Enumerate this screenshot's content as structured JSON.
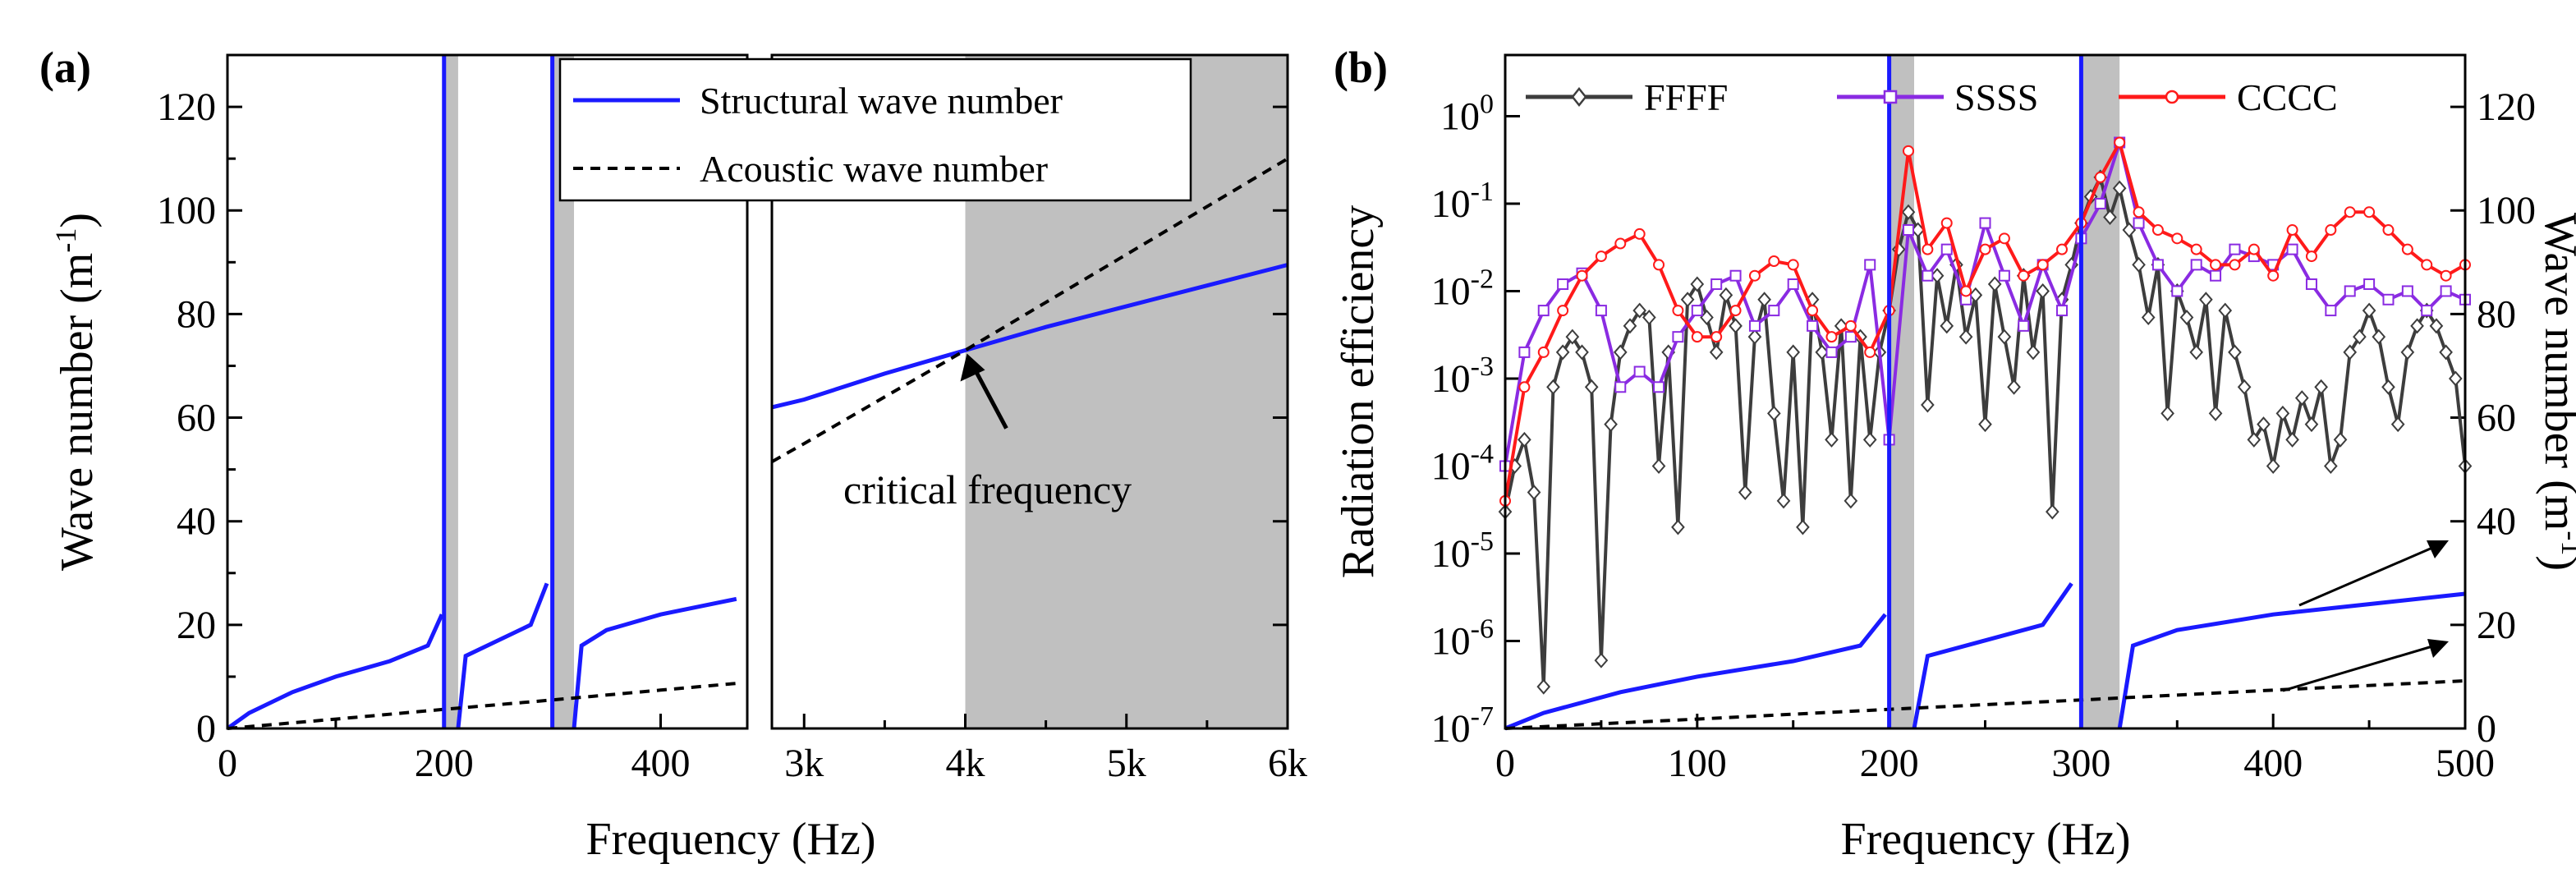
{
  "chart_data": [
    {
      "panel": "(a)",
      "type": "line",
      "xlabel": "Frequency (Hz)",
      "ylabel_prefix": "Wave number (m",
      "ylabel_sup": "-1",
      "ylabel_suffix": ")",
      "ylim": [
        0,
        130
      ],
      "yticks": [
        0,
        20,
        40,
        60,
        80,
        100,
        120
      ],
      "broken_axis": true,
      "segment1": {
        "xlim": [
          0,
          480
        ],
        "xticks": [
          0,
          200,
          400
        ],
        "xtick_labels": [
          "0",
          "200",
          "400"
        ]
      },
      "segment2": {
        "xlim": [
          2800,
          6000
        ],
        "xticks": [
          3000,
          4000,
          5000,
          6000
        ],
        "xtick_labels": [
          "3k",
          "4k",
          "5k",
          "6k"
        ]
      },
      "shaded_bands_hz": [
        [
          200,
          213
        ],
        [
          300,
          320
        ],
        [
          4000,
          6000
        ]
      ],
      "legend": [
        "Structural wave number",
        "Acoustic wave number"
      ],
      "legend_position": "top-right",
      "annotation": "critical frequency",
      "critical_point": {
        "x": 4000,
        "y": 73
      },
      "series": [
        {
          "name": "Structural wave number",
          "style": "solid",
          "color": "#1a1aff",
          "x": [
            0,
            20,
            60,
            100,
            150,
            185,
            198,
            213,
            220,
            250,
            280,
            295,
            320,
            327,
            350,
            400,
            470,
            2800,
            3000,
            3500,
            4000,
            4500,
            5000,
            5500,
            6000
          ],
          "y": [
            0,
            3,
            7,
            10,
            13,
            16,
            22,
            0,
            14,
            17,
            20,
            28,
            0,
            16,
            19,
            22,
            25,
            62,
            63.5,
            68.5,
            73,
            77.5,
            81.5,
            85.5,
            89.5
          ]
        },
        {
          "name": "Acoustic wave number",
          "style": "dashed",
          "color": "#000000",
          "x": [
            0,
            100,
            200,
            300,
            400,
            470,
            2800,
            3000,
            4000,
            5000,
            6000
          ],
          "y": [
            0,
            1.8,
            3.7,
            5.5,
            7.4,
            8.7,
            51.5,
            55,
            73,
            91.5,
            110
          ]
        }
      ]
    },
    {
      "panel": "(b)",
      "type": "line",
      "xlabel": "Frequency (Hz)",
      "ylabel": "Radiation efficiency",
      "ylabel_right_prefix": "Wave number (m",
      "ylabel_right_sup": "-1",
      "ylabel_right_suffix": ")",
      "xlim": [
        0,
        500
      ],
      "xticks": [
        0,
        100,
        200,
        300,
        400,
        500
      ],
      "ylim_log": [
        1e-07,
        5
      ],
      "ytick_exponents": [
        -7,
        -6,
        -5,
        -4,
        -3,
        -2,
        -1,
        0
      ],
      "ytick_base": "10",
      "ylim_right": [
        0,
        130
      ],
      "yticks_right": [
        0,
        20,
        40,
        60,
        80,
        100,
        120
      ],
      "shaded_bands_hz": [
        [
          200,
          213
        ],
        [
          300,
          320
        ]
      ],
      "legend": [
        "FFFF",
        "SSSS",
        "CCCC"
      ],
      "legend_position": "top",
      "series": [
        {
          "name": "FFFF",
          "color": "#3d3d3d",
          "marker": "diamond",
          "x": [
            0,
            5,
            10,
            15,
            20,
            25,
            30,
            35,
            40,
            45,
            50,
            55,
            60,
            65,
            70,
            75,
            80,
            85,
            90,
            95,
            100,
            105,
            110,
            115,
            120,
            125,
            130,
            135,
            140,
            145,
            150,
            155,
            160,
            165,
            170,
            175,
            180,
            185,
            190,
            195,
            200,
            205,
            210,
            215,
            220,
            225,
            230,
            235,
            240,
            245,
            250,
            255,
            260,
            265,
            270,
            275,
            280,
            285,
            290,
            295,
            300,
            305,
            310,
            315,
            320,
            325,
            330,
            335,
            340,
            345,
            350,
            355,
            360,
            365,
            370,
            375,
            380,
            385,
            390,
            395,
            400,
            405,
            410,
            415,
            420,
            425,
            430,
            435,
            440,
            445,
            450,
            455,
            460,
            465,
            470,
            475,
            480,
            485,
            490,
            495,
            500
          ],
          "y": [
            3e-05,
            0.0001,
            0.0002,
            5e-05,
            3e-07,
            0.0008,
            0.002,
            0.003,
            0.002,
            0.0008,
            6e-07,
            0.0003,
            0.002,
            0.004,
            0.006,
            0.005,
            0.0001,
            0.002,
            2e-05,
            0.008,
            0.012,
            0.005,
            0.002,
            0.009,
            0.004,
            5e-05,
            0.003,
            0.008,
            0.0004,
            4e-05,
            0.002,
            2e-05,
            0.008,
            0.002,
            0.0002,
            0.004,
            4e-05,
            0.003,
            0.0002,
            0.002,
            0.006,
            0.03,
            0.08,
            0.05,
            0.0005,
            0.015,
            0.004,
            0.02,
            0.003,
            0.009,
            0.0003,
            0.012,
            0.003,
            0.0008,
            0.015,
            0.002,
            0.01,
            3e-05,
            0.008,
            0.02,
            0.06,
            0.12,
            0.2,
            0.07,
            0.15,
            0.05,
            0.02,
            0.005,
            0.02,
            0.0004,
            0.01,
            0.005,
            0.002,
            0.008,
            0.0004,
            0.006,
            0.002,
            0.0008,
            0.0002,
            0.0003,
            0.0001,
            0.0004,
            0.0002,
            0.0006,
            0.0003,
            0.0008,
            0.0001,
            0.0002,
            0.002,
            0.003,
            0.006,
            0.003,
            0.0008,
            0.0003,
            0.002,
            0.004,
            0.006,
            0.004,
            0.002,
            0.001,
            0.0001
          ]
        },
        {
          "name": "SSSS",
          "color": "#8a2be2",
          "marker": "square",
          "x": [
            0,
            10,
            20,
            30,
            40,
            50,
            60,
            70,
            80,
            90,
            100,
            110,
            120,
            130,
            140,
            150,
            160,
            170,
            180,
            190,
            200,
            210,
            220,
            230,
            240,
            250,
            260,
            270,
            280,
            290,
            300,
            310,
            320,
            330,
            340,
            350,
            360,
            370,
            380,
            390,
            400,
            410,
            420,
            430,
            440,
            450,
            460,
            470,
            480,
            490,
            500
          ],
          "y": [
            0.0001,
            0.002,
            0.006,
            0.012,
            0.016,
            0.006,
            0.0008,
            0.0012,
            0.0008,
            0.003,
            0.006,
            0.012,
            0.015,
            0.004,
            0.006,
            0.012,
            0.004,
            0.002,
            0.003,
            0.02,
            0.0002,
            0.05,
            0.015,
            0.03,
            0.008,
            0.06,
            0.015,
            0.004,
            0.02,
            0.006,
            0.04,
            0.1,
            0.5,
            0.06,
            0.02,
            0.01,
            0.02,
            0.015,
            0.03,
            0.025,
            0.02,
            0.03,
            0.012,
            0.006,
            0.01,
            0.012,
            0.008,
            0.01,
            0.006,
            0.01,
            0.008
          ]
        },
        {
          "name": "CCCC",
          "color": "#ff1a1a",
          "marker": "circle",
          "x": [
            0,
            10,
            20,
            30,
            40,
            50,
            60,
            70,
            80,
            90,
            100,
            110,
            120,
            130,
            140,
            150,
            160,
            170,
            180,
            190,
            200,
            210,
            220,
            230,
            240,
            250,
            260,
            270,
            280,
            290,
            300,
            310,
            320,
            330,
            340,
            350,
            360,
            370,
            380,
            390,
            400,
            410,
            420,
            430,
            440,
            450,
            460,
            470,
            480,
            490,
            500
          ],
          "y": [
            4e-05,
            0.0008,
            0.002,
            0.006,
            0.015,
            0.025,
            0.035,
            0.045,
            0.02,
            0.006,
            0.003,
            0.003,
            0.006,
            0.015,
            0.022,
            0.02,
            0.006,
            0.003,
            0.004,
            0.002,
            0.006,
            0.4,
            0.03,
            0.06,
            0.01,
            0.03,
            0.04,
            0.015,
            0.02,
            0.03,
            0.06,
            0.2,
            0.5,
            0.08,
            0.05,
            0.04,
            0.03,
            0.02,
            0.02,
            0.03,
            0.015,
            0.05,
            0.025,
            0.05,
            0.08,
            0.08,
            0.05,
            0.03,
            0.02,
            0.015,
            0.02
          ]
        },
        {
          "name": "Structural wave number",
          "axis": "right",
          "style": "solid",
          "color": "#1a1aff",
          "x": [
            0,
            20,
            60,
            100,
            150,
            185,
            198,
            213,
            220,
            250,
            280,
            295,
            320,
            327,
            350,
            400,
            450,
            500
          ],
          "y": [
            0,
            3,
            7,
            10,
            13,
            16,
            22,
            0,
            14,
            17,
            20,
            28,
            0,
            16,
            19,
            22,
            24,
            26
          ]
        },
        {
          "name": "Acoustic wave number",
          "axis": "right",
          "style": "dashed",
          "color": "#000000",
          "x": [
            0,
            100,
            200,
            300,
            400,
            500
          ],
          "y": [
            0,
            1.8,
            3.7,
            5.5,
            7.4,
            9.2
          ]
        }
      ]
    }
  ]
}
